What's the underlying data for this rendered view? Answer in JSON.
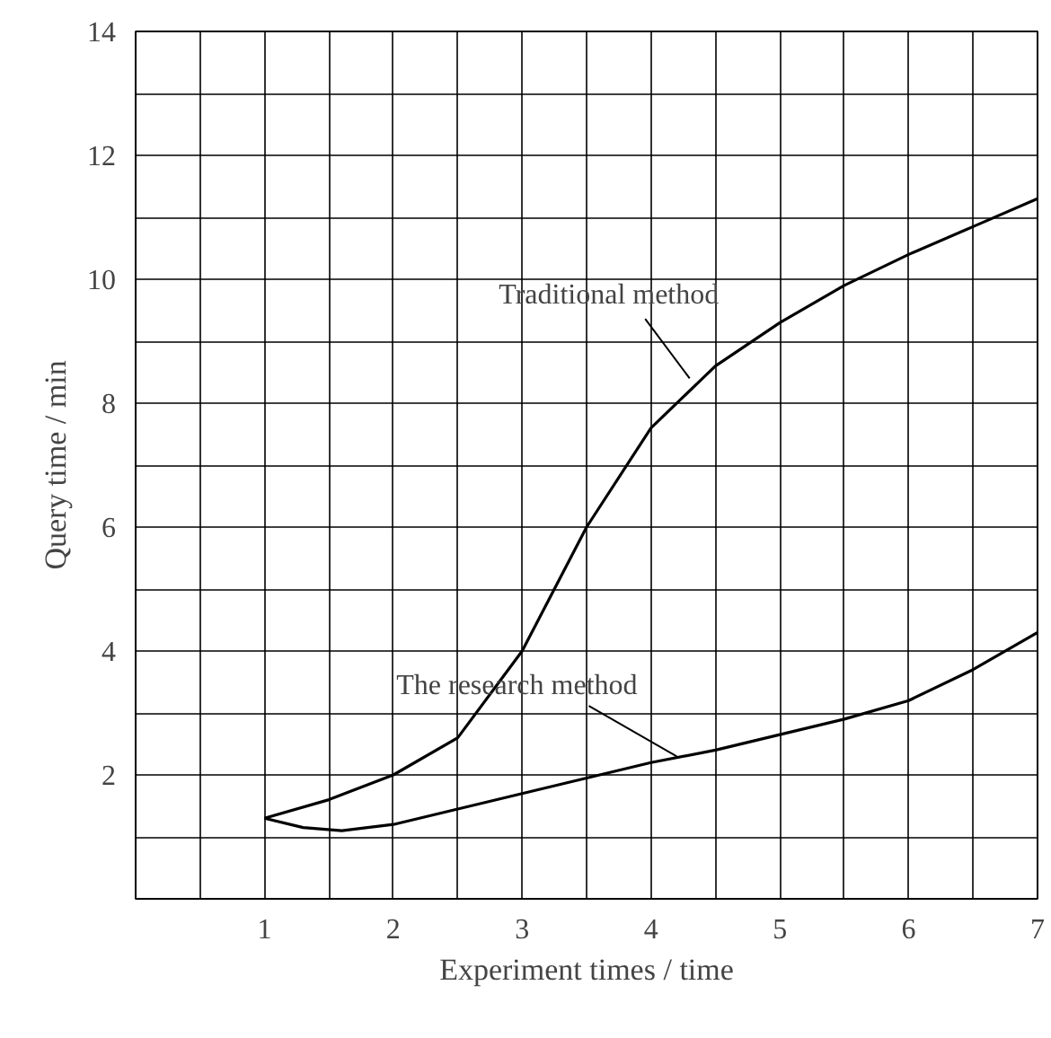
{
  "chart_data": {
    "type": "line",
    "xlabel": "Experiment times / time",
    "ylabel": "Query time / min",
    "x": [
      1,
      1.5,
      2,
      2.5,
      3,
      3.5,
      4,
      4.5,
      5,
      5.5,
      6,
      6.5,
      7
    ],
    "series": [
      {
        "color": "#000000",
        "values": [
          1.3,
          1.6,
          2.0,
          2.6,
          4.0,
          6.0,
          7.6,
          8.6,
          9.3,
          9.9,
          10.4,
          10.85,
          11.3
        ]
      },
      {
        "color": "#000000",
        "x": [
          1,
          1.3,
          1.6,
          2,
          2.5,
          3,
          3.5,
          4,
          4.5,
          5,
          5.5,
          6,
          6.5,
          7
        ],
        "values": [
          1.3,
          1.15,
          1.1,
          1.2,
          1.45,
          1.7,
          1.95,
          2.2,
          2.4,
          2.65,
          2.9,
          3.2,
          3.7,
          4.3
        ]
      }
    ],
    "annotations": [
      {
        "text": "Traditional method",
        "x": 4.3,
        "y": 8.4
      },
      {
        "text": "The research method",
        "x": 4.2,
        "y": 2.3
      }
    ],
    "xlim": [
      0,
      7
    ],
    "ylim": [
      0,
      14
    ],
    "xticks": [
      1,
      2,
      3,
      4,
      5,
      6,
      7
    ],
    "yticks": [
      2,
      4,
      6,
      8,
      10,
      12,
      14
    ],
    "grid": true,
    "marker": "none",
    "line_style": "solid"
  }
}
